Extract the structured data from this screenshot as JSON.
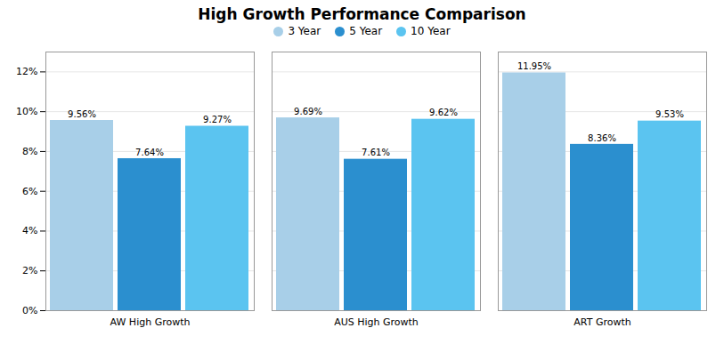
{
  "chart_data": {
    "type": "bar",
    "title": "High Growth Performance Comparison",
    "categories": [
      "AW High Growth",
      "AUS High Growth",
      "ART Growth"
    ],
    "series": [
      {
        "name": "3 Year",
        "color": "#a8cfe8",
        "values": [
          9.56,
          9.69,
          11.95
        ],
        "value_labels": [
          "9.56%",
          "9.69%",
          "11.95%"
        ]
      },
      {
        "name": "5 Year",
        "color": "#2b8fcf",
        "values": [
          7.64,
          7.61,
          8.36
        ],
        "value_labels": [
          "7.64%",
          "7.61%",
          "8.36%"
        ]
      },
      {
        "name": "10 Year",
        "color": "#5bc4f0",
        "values": [
          9.27,
          9.62,
          9.53
        ],
        "value_labels": [
          "9.27%",
          "9.62%",
          "9.53%"
        ]
      }
    ],
    "ylim": [
      0,
      13
    ],
    "yticks": [
      {
        "value": 0,
        "label": "0%"
      },
      {
        "value": 2,
        "label": "2%"
      },
      {
        "value": 4,
        "label": "4%"
      },
      {
        "value": 6,
        "label": "6%"
      },
      {
        "value": 8,
        "label": "8%"
      },
      {
        "value": 10,
        "label": "10%"
      },
      {
        "value": 12,
        "label": "12%"
      }
    ],
    "grid": true,
    "legend": "top",
    "data_labels": true
  }
}
